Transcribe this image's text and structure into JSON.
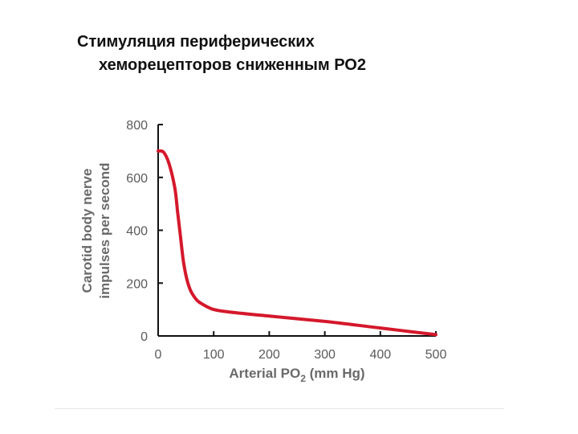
{
  "slide": {
    "title_line1": "Стимуляция периферических",
    "title_line2": "хеморецепторов сниженным РО2"
  },
  "chart_data": {
    "type": "line",
    "xlabel": "Arterial PO",
    "xlabel_sub": "2",
    "xlabel_unit": " (mm Hg)",
    "ylabel_line1": "Carotid body nerve",
    "ylabel_line2": "impulses per second",
    "xlim": [
      0,
      500
    ],
    "ylim": [
      0,
      800
    ],
    "x_ticks": [
      0,
      100,
      200,
      300,
      400,
      500
    ],
    "y_ticks": [
      0,
      200,
      400,
      600,
      800
    ],
    "grid": false,
    "line_color": "#d5182b",
    "series": [
      {
        "x": [
          0,
          10,
          20,
          30,
          35,
          40,
          45,
          50,
          55,
          60,
          70,
          80,
          100,
          130,
          200,
          300,
          400,
          500
        ],
        "y": [
          700,
          695,
          650,
          560,
          470,
          380,
          290,
          230,
          190,
          165,
          135,
          120,
          100,
          90,
          75,
          55,
          30,
          5
        ]
      }
    ]
  }
}
